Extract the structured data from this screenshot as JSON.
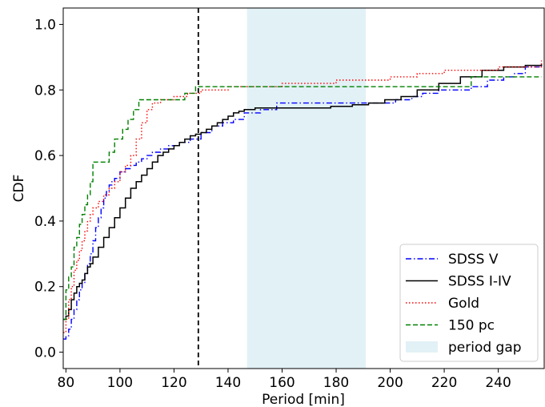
{
  "chart_data": {
    "type": "line",
    "xlabel": "Period [min]",
    "ylabel": "CDF",
    "xlim": [
      79,
      257
    ],
    "ylim": [
      -0.05,
      1.05
    ],
    "xticks": [
      "80",
      "100",
      "120",
      "140",
      "160",
      "180",
      "200",
      "220",
      "240"
    ],
    "yticks": [
      "0.0",
      "0.2",
      "0.4",
      "0.6",
      "0.8",
      "1.0"
    ],
    "legend_position": "lower-right",
    "vline": {
      "x": 129,
      "color": "#000000",
      "style": "dashed"
    },
    "shaded_band": {
      "x": [
        147,
        191
      ],
      "label": "period gap",
      "color": "#e2f1f6"
    },
    "series": [
      {
        "name": "SDSS V",
        "color": "#0000ff",
        "style": "dashdot",
        "x": [
          79,
          80,
          81,
          82,
          83,
          84,
          85,
          86,
          87,
          88,
          89,
          90,
          91,
          92,
          93,
          94,
          95,
          96,
          97,
          98,
          100,
          102,
          104,
          106,
          108,
          110,
          112,
          115,
          118,
          122,
          126,
          130,
          134,
          138,
          142,
          146,
          152,
          158,
          164,
          170,
          176,
          182,
          188,
          192,
          198,
          202,
          208,
          212,
          218,
          224,
          230,
          236,
          242,
          246,
          250,
          256
        ],
        "y": [
          0.04,
          0.05,
          0.07,
          0.1,
          0.13,
          0.16,
          0.19,
          0.21,
          0.24,
          0.27,
          0.3,
          0.34,
          0.38,
          0.41,
          0.44,
          0.47,
          0.49,
          0.51,
          0.52,
          0.53,
          0.55,
          0.56,
          0.57,
          0.58,
          0.59,
          0.6,
          0.61,
          0.62,
          0.63,
          0.64,
          0.65,
          0.67,
          0.69,
          0.7,
          0.71,
          0.73,
          0.74,
          0.76,
          0.76,
          0.76,
          0.76,
          0.76,
          0.76,
          0.76,
          0.76,
          0.77,
          0.78,
          0.79,
          0.8,
          0.8,
          0.81,
          0.83,
          0.84,
          0.85,
          0.87,
          0.88
        ]
      },
      {
        "name": "SDSS I-IV",
        "color": "#000000",
        "style": "solid",
        "x": [
          79,
          80,
          81,
          82,
          83,
          84,
          85,
          86,
          87,
          88,
          89,
          90,
          92,
          94,
          96,
          98,
          100,
          102,
          104,
          106,
          108,
          110,
          112,
          114,
          116,
          118,
          120,
          122,
          124,
          126,
          128,
          130,
          132,
          134,
          136,
          138,
          140,
          142,
          144,
          146,
          150,
          156,
          162,
          170,
          178,
          186,
          192,
          198,
          204,
          210,
          218,
          226,
          234,
          242,
          250,
          256
        ],
        "y": [
          0.1,
          0.11,
          0.13,
          0.16,
          0.18,
          0.2,
          0.21,
          0.22,
          0.24,
          0.26,
          0.27,
          0.29,
          0.32,
          0.35,
          0.38,
          0.41,
          0.44,
          0.47,
          0.5,
          0.52,
          0.54,
          0.56,
          0.58,
          0.6,
          0.61,
          0.62,
          0.63,
          0.64,
          0.65,
          0.66,
          0.665,
          0.67,
          0.68,
          0.69,
          0.7,
          0.71,
          0.72,
          0.73,
          0.735,
          0.74,
          0.745,
          0.745,
          0.745,
          0.745,
          0.75,
          0.755,
          0.76,
          0.77,
          0.78,
          0.8,
          0.82,
          0.84,
          0.86,
          0.87,
          0.875,
          0.88
        ]
      },
      {
        "name": "Gold",
        "color": "#ff0000",
        "style": "dotted",
        "x": [
          79,
          80,
          81,
          82,
          83,
          84,
          85,
          86,
          87,
          88,
          89,
          90,
          92,
          94,
          96,
          98,
          100,
          102,
          104,
          106,
          108,
          110,
          112,
          115,
          120,
          125,
          130,
          140,
          150,
          160,
          170,
          180,
          190,
          200,
          210,
          220,
          230,
          240,
          250,
          256
        ],
        "y": [
          0.06,
          0.1,
          0.16,
          0.2,
          0.25,
          0.28,
          0.31,
          0.34,
          0.37,
          0.4,
          0.42,
          0.44,
          0.46,
          0.48,
          0.5,
          0.52,
          0.55,
          0.57,
          0.6,
          0.65,
          0.7,
          0.74,
          0.76,
          0.77,
          0.78,
          0.79,
          0.8,
          0.81,
          0.81,
          0.82,
          0.82,
          0.83,
          0.83,
          0.84,
          0.85,
          0.86,
          0.86,
          0.87,
          0.87,
          0.89
        ]
      },
      {
        "name": "150 pc",
        "color": "#008000",
        "style": "dashed",
        "x": [
          79,
          80,
          81,
          82,
          83,
          84,
          85,
          86,
          87,
          88,
          89,
          90,
          93,
          96,
          98,
          101,
          103,
          105,
          107,
          109,
          115,
          124,
          128,
          140,
          160,
          180,
          200,
          210,
          220,
          230,
          240,
          256
        ],
        "y": [
          0.1,
          0.19,
          0.23,
          0.26,
          0.32,
          0.35,
          0.39,
          0.42,
          0.45,
          0.48,
          0.52,
          0.58,
          0.58,
          0.61,
          0.65,
          0.68,
          0.71,
          0.74,
          0.77,
          0.77,
          0.77,
          0.79,
          0.81,
          0.81,
          0.81,
          0.81,
          0.81,
          0.81,
          0.81,
          0.84,
          0.84,
          0.84
        ]
      }
    ]
  }
}
